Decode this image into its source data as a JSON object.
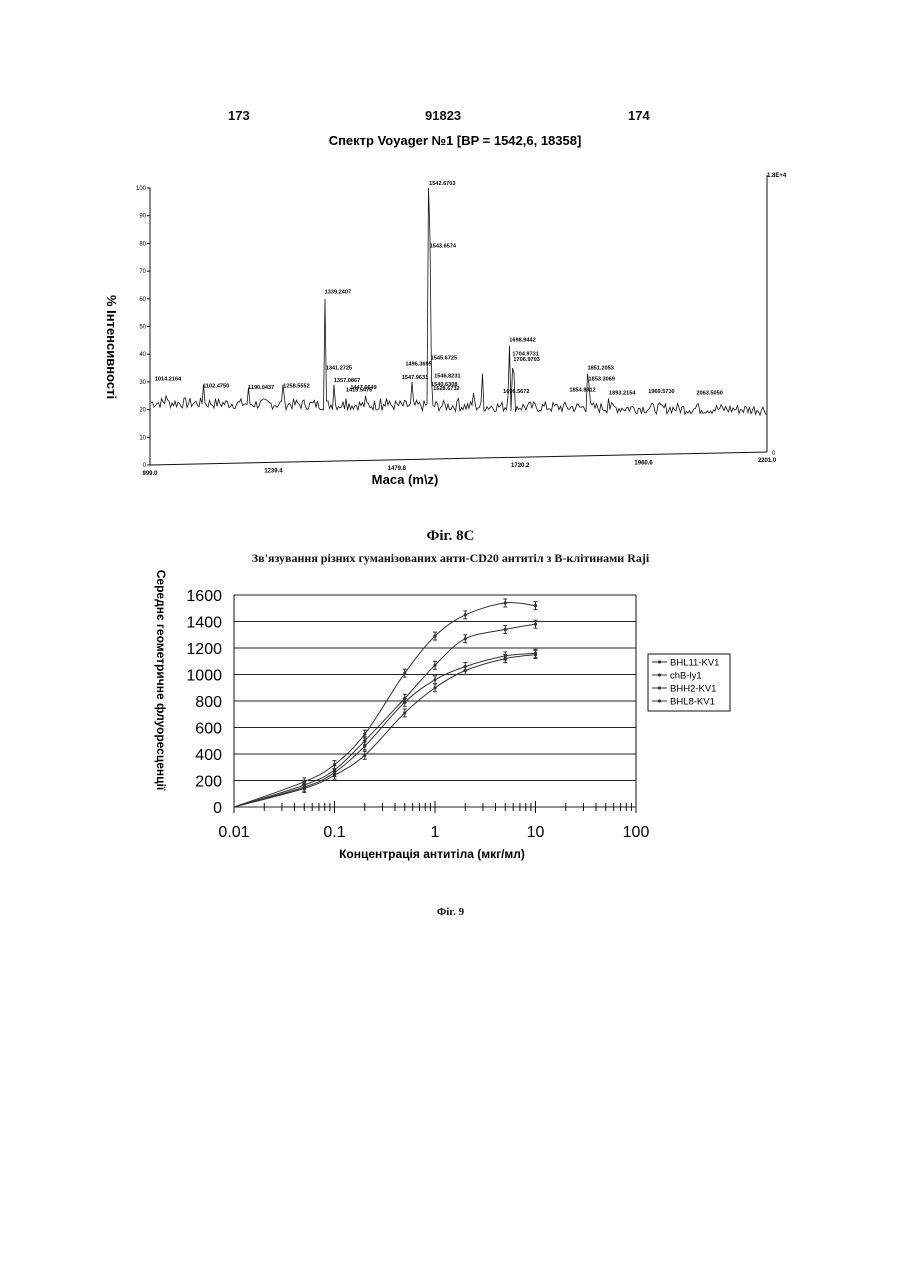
{
  "header": {
    "page_left": "173",
    "patent_number": "91823",
    "page_right": "174"
  },
  "spectrum": {
    "title": "Спектр Voyager №1 [BP = 1542,6, 18358]",
    "ylabel": "% Інтенсивності",
    "xlabel": "Маса (m\\z)",
    "right_scale_top": "1.8E+4",
    "right_scale_bottom": "0",
    "y_ticks": [
      "0",
      "10",
      "20",
      "30",
      "40",
      "50",
      "60",
      "70",
      "80",
      "90",
      "100"
    ],
    "x_ticks": [
      "999.0",
      "1239.4",
      "1479.8",
      "1720.2",
      "1960.6",
      "2201.0"
    ],
    "peak_labels": [
      "1014.2164",
      "1102.4750",
      "1190.0437",
      "1258.5552",
      "1339.2407",
      "1341.2725",
      "1357.0867",
      "1447.6649",
      "1419.5476",
      "1496.3695",
      "1542.6703",
      "1543.6574",
      "1545.6725",
      "1546.8231",
      "1540.6308",
      "1547.9631",
      "1628.6732",
      "1698.9442",
      "1704.9731",
      "1706.9703",
      "1696.5672",
      "1851.2053",
      "1853.3069",
      "1854.8912",
      "1893.2154",
      "1969.5730",
      "2063.5050"
    ],
    "figure_caption": "Фіг. 8С"
  },
  "binding": {
    "title": "Зв'язування різних гуманізованих анти-CD20 антитіл з В-клітинами Raji",
    "ylabel": "Середнє геометричне флуоресценції",
    "xlabel": "Концентрація антитіла (мкг/мл)",
    "figure_caption": "Фіг. 9"
  },
  "chart_data": [
    {
      "type": "line",
      "title": "Спектр Voyager №1 [BP = 1542,6, 18358]",
      "xlabel": "Маса (m\\z)",
      "ylabel": "% Інтенсивності",
      "xlim": [
        999.0,
        2201.0
      ],
      "ylim": [
        0,
        100
      ],
      "x_ticks": [
        999.0,
        1239.4,
        1479.8,
        1720.2,
        1960.6,
        2201.0
      ],
      "y_ticks": [
        0,
        10,
        20,
        30,
        40,
        50,
        60,
        70,
        80,
        90,
        100
      ],
      "series": [
        {
          "x": [
            1014.2,
            1030,
            1102.5,
            1190.0,
            1258.6,
            1300,
            1339.2,
            1341.3,
            1357.1,
            1380,
            1419.5,
            1447.7,
            1460,
            1496.4,
            1510,
            1542.7,
            1543.7,
            1545.7,
            1546.8,
            1547.0,
            1600,
            1628.7,
            1647.9,
            1696.6,
            1698.9,
            1704.97,
            1706.97,
            1851.2,
            1853.3,
            1854.9,
            1893.2,
            1969.6,
            2063.5,
            2150,
            2201
          ],
          "y": [
            31,
            25,
            29,
            28,
            29,
            23,
            60,
            34,
            29,
            24,
            25,
            24,
            24,
            35,
            30,
            100,
            82,
            36,
            31,
            28,
            24,
            26,
            33,
            25,
            43,
            35,
            33,
            33,
            29,
            25,
            24,
            22,
            22,
            20,
            20
          ]
        }
      ]
    },
    {
      "type": "line",
      "title": "Зв'язування різних гуманізованих анти-CD20 антитіл з В-клітинами Raji",
      "xlabel": "Концентрація антитіла (мкг/мл)",
      "ylabel": "Середнє геометричне флуоресценції",
      "x_scale": "log",
      "xlim": [
        0.01,
        100
      ],
      "ylim": [
        0,
        1600
      ],
      "x_ticks": [
        0.01,
        0.1,
        1,
        10,
        100
      ],
      "y_ticks": [
        0,
        200,
        400,
        600,
        800,
        1000,
        1200,
        1400,
        1600
      ],
      "grid": true,
      "legend": "right",
      "x": [
        0.01,
        0.05,
        0.1,
        0.2,
        0.5,
        1,
        2,
        5,
        10
      ],
      "series": [
        {
          "name": "BHL11-KV1",
          "values": [
            0,
            165,
            280,
            500,
            820,
            1070,
            1270,
            1340,
            1380
          ]
        },
        {
          "name": "chB-ly1",
          "values": [
            0,
            190,
            320,
            550,
            1010,
            1290,
            1450,
            1540,
            1520
          ]
        },
        {
          "name": "BHH2-KV1",
          "values": [
            0,
            150,
            260,
            460,
            790,
            960,
            1060,
            1140,
            1160
          ]
        },
        {
          "name": "BHL8-KV1",
          "values": [
            0,
            140,
            240,
            390,
            710,
            900,
            1030,
            1120,
            1150
          ]
        }
      ]
    }
  ]
}
